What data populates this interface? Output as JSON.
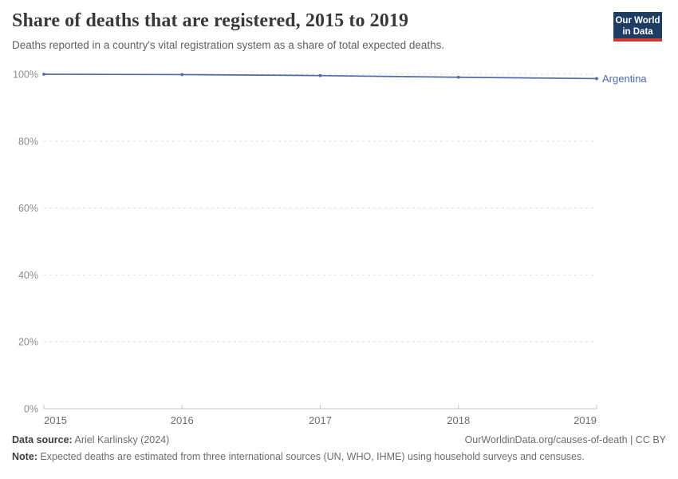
{
  "header": {
    "title": "Share of deaths that are registered, 2015 to 2019",
    "subtitle": "Deaths reported in a country's vital registration system as a share of total expected deaths."
  },
  "logo": {
    "line1": "Our World",
    "line2": "in Data"
  },
  "chart_data": {
    "type": "line",
    "title": "Share of deaths that are registered, 2015 to 2019",
    "xlabel": "",
    "ylabel": "",
    "x": [
      2015,
      2016,
      2017,
      2018,
      2019
    ],
    "series": [
      {
        "name": "Argentina",
        "values": [
          100,
          99.9,
          99.6,
          99.1,
          98.7
        ],
        "color": "#4e6ba8"
      }
    ],
    "ylim": [
      0,
      100
    ],
    "yticks": [
      0,
      20,
      40,
      60,
      80,
      100
    ],
    "ytick_suffix": "%",
    "grid": "horizontal-dashed",
    "legend": "line-end-label"
  },
  "footer": {
    "datasource_label": "Data source:",
    "datasource_value": " Ariel Karlinsky (2024)",
    "link": "OurWorldinData.org/causes-of-death | CC BY",
    "note_label": "Note:",
    "note_value": " Expected deaths are estimated from three international sources (UN, WHO, IHME) using household surveys and censuses."
  },
  "colors": {
    "accent_line": "#4e6ba8",
    "logo_navy": "#1d3d63",
    "logo_red": "#d13830"
  }
}
